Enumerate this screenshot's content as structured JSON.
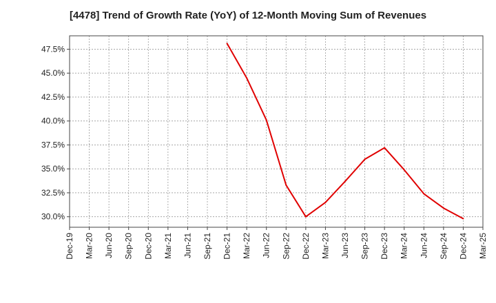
{
  "chart_data": {
    "type": "line",
    "title": "[4478]  Trend of Growth Rate (YoY) of 12-Month Moving Sum of Revenues",
    "xlabel": "",
    "ylabel": "",
    "x_ticks": [
      "Dec-19",
      "Mar-20",
      "Jun-20",
      "Sep-20",
      "Dec-20",
      "Mar-21",
      "Jun-21",
      "Sep-21",
      "Dec-21",
      "Mar-22",
      "Jun-22",
      "Sep-22",
      "Dec-22",
      "Mar-23",
      "Jun-23",
      "Sep-23",
      "Dec-23",
      "Mar-24",
      "Jun-24",
      "Sep-24",
      "Dec-24",
      "Mar-25"
    ],
    "y_ticks": [
      "30.0%",
      "32.5%",
      "35.0%",
      "37.5%",
      "40.0%",
      "42.5%",
      "45.0%",
      "47.5%"
    ],
    "ylim": [
      28.9,
      48.9
    ],
    "grid": true,
    "series": [
      {
        "color": "#e00000",
        "x": [
          "Dec-21",
          "Mar-22",
          "Jun-22",
          "Sep-22",
          "Dec-22",
          "Mar-23",
          "Jun-23",
          "Sep-23",
          "Dec-23",
          "Mar-24",
          "Jun-24",
          "Sep-24",
          "Dec-24"
        ],
        "values": [
          48.1,
          44.5,
          40.1,
          33.3,
          30.0,
          31.5,
          33.7,
          36.0,
          37.2,
          34.9,
          32.4,
          30.9,
          29.8
        ]
      }
    ]
  }
}
